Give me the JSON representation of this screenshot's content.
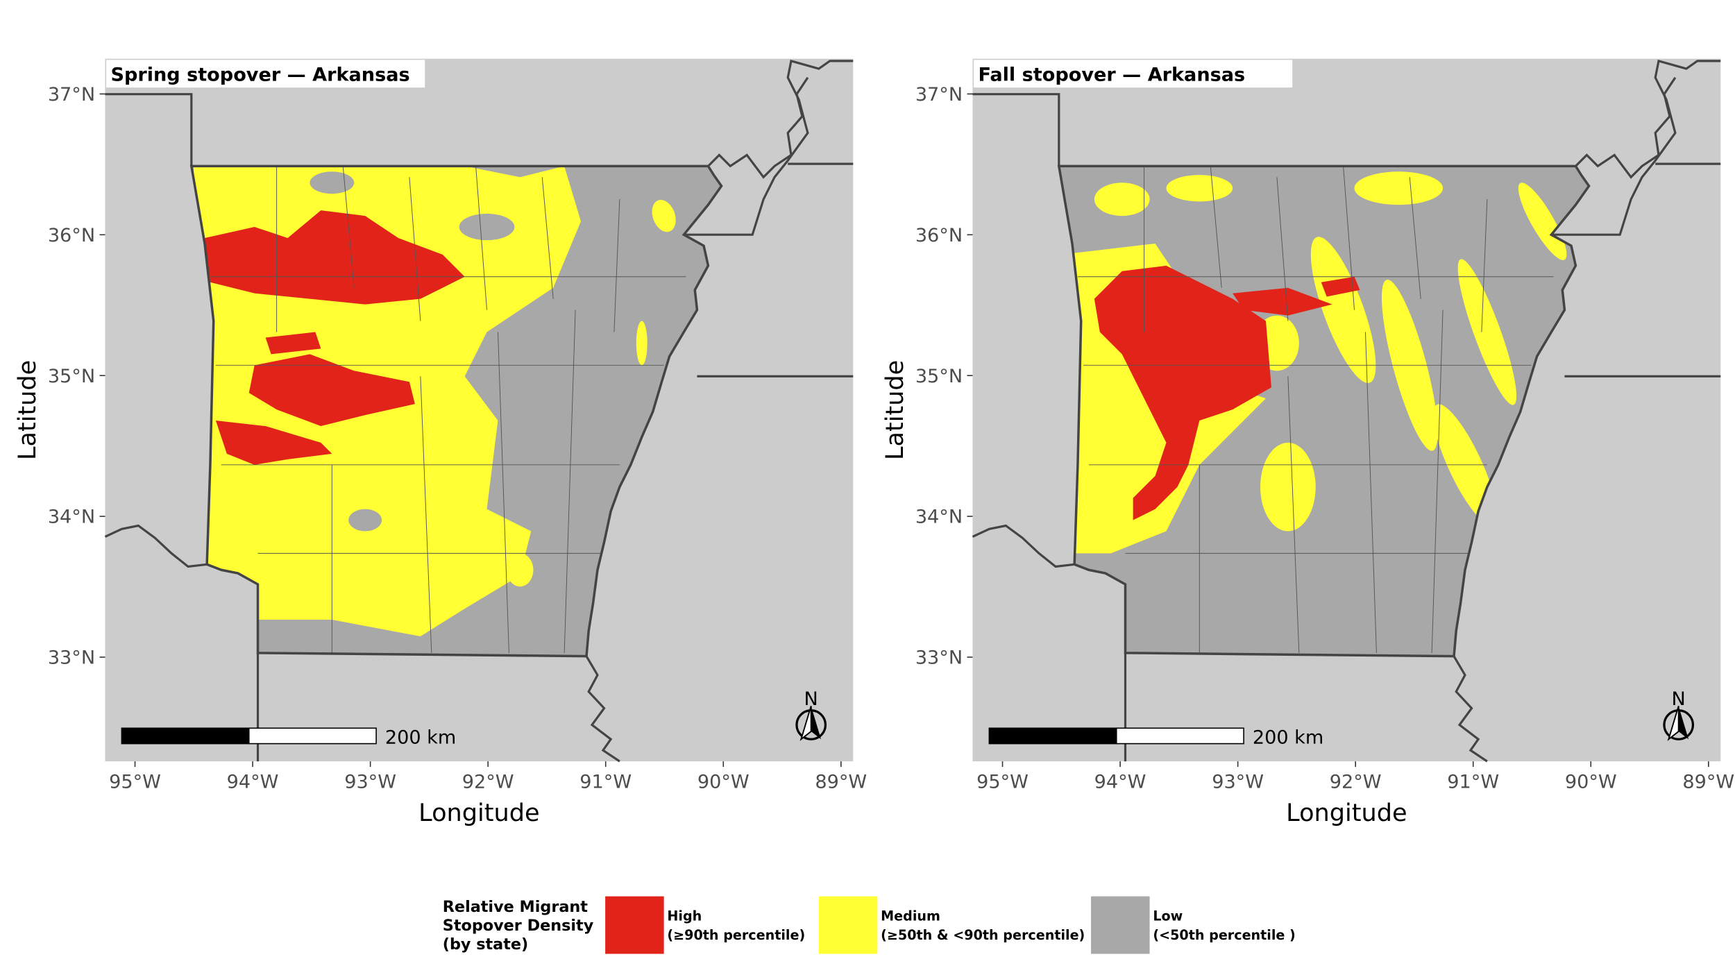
{
  "panels": [
    {
      "title": "Spring stopover — Arkansas",
      "x_axis_label": "Longitude",
      "y_axis_label": "Latitude",
      "xlim": [
        -95.254,
        -88.897
      ],
      "ylim": [
        32.26,
        37.25
      ],
      "xticks": [
        {
          "value": -95,
          "label": "95°W"
        },
        {
          "value": -94,
          "label": "94°W"
        },
        {
          "value": -93,
          "label": "93°W"
        },
        {
          "value": -92,
          "label": "92°W"
        },
        {
          "value": -91,
          "label": "91°W"
        },
        {
          "value": -90,
          "label": "90°W"
        },
        {
          "value": -89,
          "label": "89°W"
        }
      ],
      "yticks": [
        {
          "value": 33,
          "label": "33°N"
        },
        {
          "value": 34,
          "label": "34°N"
        },
        {
          "value": 35,
          "label": "35°N"
        },
        {
          "value": 36,
          "label": "36°N"
        },
        {
          "value": 37,
          "label": "37°N"
        }
      ],
      "scale_bar_label": "200 km",
      "north_arrow": "N"
    },
    {
      "title": "Fall stopover — Arkansas",
      "x_axis_label": "Longitude",
      "y_axis_label": "Latitude",
      "xlim": [
        -95.254,
        -88.897
      ],
      "ylim": [
        32.26,
        37.25
      ],
      "xticks": [
        {
          "value": -95,
          "label": "95°W"
        },
        {
          "value": -94,
          "label": "94°W"
        },
        {
          "value": -93,
          "label": "93°W"
        },
        {
          "value": -92,
          "label": "92°W"
        },
        {
          "value": -91,
          "label": "91°W"
        },
        {
          "value": -90,
          "label": "90°W"
        },
        {
          "value": -89,
          "label": "89°W"
        }
      ],
      "yticks": [
        {
          "value": 33,
          "label": "33°N"
        },
        {
          "value": 34,
          "label": "34°N"
        },
        {
          "value": 35,
          "label": "35°N"
        },
        {
          "value": 36,
          "label": "36°N"
        },
        {
          "value": 37,
          "label": "37°N"
        }
      ],
      "scale_bar_label": "200 km",
      "north_arrow": "N"
    }
  ],
  "legend": {
    "title_lines": [
      "Relative Migrant",
      "Stopover Density",
      "(by state)"
    ],
    "items": [
      {
        "lines": [
          "High",
          "(≥90th percentile)"
        ],
        "color": "#e2231a"
      },
      {
        "lines": [
          "Medium",
          "(≥50th & <90th percentile)"
        ],
        "color": "#ffff33"
      },
      {
        "lines": [
          "Low",
          "(<50th percentile )"
        ],
        "color": "#a8a8a8"
      }
    ]
  }
}
